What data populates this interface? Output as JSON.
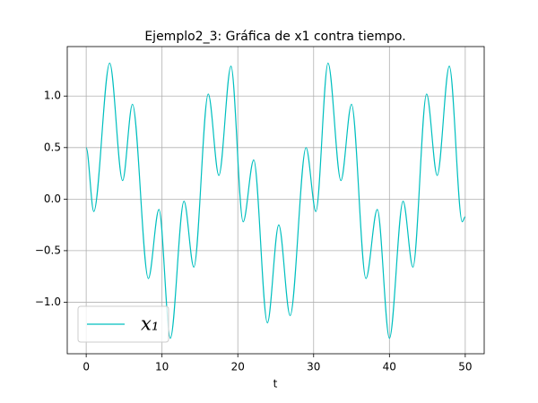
{
  "chart_data": {
    "type": "line",
    "title": "Ejemplo2_3: Gráfica de x1 contra tiempo.",
    "x_label": "t",
    "x": [
      0,
      1.0,
      3.1,
      4.8,
      6.1,
      8.2,
      9.6,
      11.1,
      12.9,
      14.2,
      16.1,
      17.5,
      19.1,
      20.7,
      22.1,
      23.9,
      25.4,
      26.9,
      29.0,
      30.3,
      31.9,
      33.6,
      35.0,
      36.9,
      38.4,
      40.0,
      41.8,
      43.1,
      44.9,
      46.3,
      47.9,
      49.6,
      50
    ],
    "series": [
      {
        "name": "x₁",
        "color": "#00bfbf",
        "values": [
          0.5,
          -0.12,
          1.32,
          0.18,
          0.92,
          -0.77,
          -0.1,
          -1.35,
          -0.02,
          -0.66,
          1.02,
          0.23,
          1.29,
          -0.22,
          0.38,
          -1.2,
          -0.25,
          -1.13,
          0.5,
          -0.12,
          1.32,
          0.18,
          0.92,
          -0.77,
          -0.1,
          -1.35,
          -0.02,
          -0.66,
          1.02,
          0.23,
          1.29,
          -0.22,
          -0.17
        ]
      }
    ],
    "xlim": [
      -2.5,
      52.5
    ],
    "ylim": [
      -1.5,
      1.48
    ],
    "xticks": [
      0,
      10,
      20,
      30,
      40,
      50
    ],
    "yticks": [
      {
        "value": -1.0,
        "label": "−1.0"
      },
      {
        "value": -0.5,
        "label": "−0.5"
      },
      {
        "value": 0.0,
        "label": "0.0"
      },
      {
        "value": 0.5,
        "label": "0.5"
      },
      {
        "value": 1.0,
        "label": "1.0"
      }
    ],
    "grid": true,
    "legend": "lower left"
  }
}
